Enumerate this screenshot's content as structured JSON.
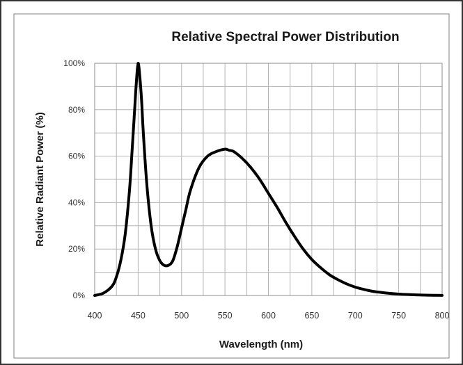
{
  "chart_data": {
    "type": "line",
    "title": "Relative Spectral Power Distribution",
    "xlabel": "Wavelength (nm)",
    "ylabel": "Relative Radiant Power (%)",
    "xlim": [
      400,
      800
    ],
    "ylim": [
      0,
      100
    ],
    "x_ticks": [
      "400",
      "450",
      "500",
      "550",
      "600",
      "650",
      "700",
      "750",
      "800"
    ],
    "y_ticks": [
      "0%",
      "20%",
      "40%",
      "60%",
      "80%",
      "100%"
    ],
    "grid": true,
    "legend": "none",
    "line_color": "#000000",
    "series": [
      {
        "x": [
          400,
          410,
          420,
          425,
          430,
          435,
          440,
          443,
          446,
          448,
          450,
          452,
          454,
          456,
          460,
          465,
          470,
          475,
          480,
          485,
          490,
          495,
          500,
          505,
          510,
          520,
          530,
          540,
          550,
          555,
          560,
          570,
          580,
          590,
          600,
          610,
          620,
          630,
          640,
          650,
          660,
          670,
          680,
          690,
          700,
          710,
          720,
          730,
          740,
          750,
          760,
          770,
          780,
          790,
          800
        ],
        "y": [
          0,
          1,
          4,
          8,
          15,
          26,
          45,
          62,
          80,
          92,
          100,
          94,
          84,
          70,
          48,
          30,
          20,
          15,
          13,
          13,
          15,
          21,
          29,
          37,
          45,
          55,
          60,
          62,
          63,
          62.5,
          62,
          59,
          55,
          50,
          44,
          38,
          31.5,
          25.5,
          20,
          15.5,
          12,
          9,
          6.8,
          5,
          3.6,
          2.6,
          1.8,
          1.3,
          0.9,
          0.6,
          0.4,
          0.25,
          0.15,
          0.08,
          0.05
        ]
      }
    ]
  }
}
